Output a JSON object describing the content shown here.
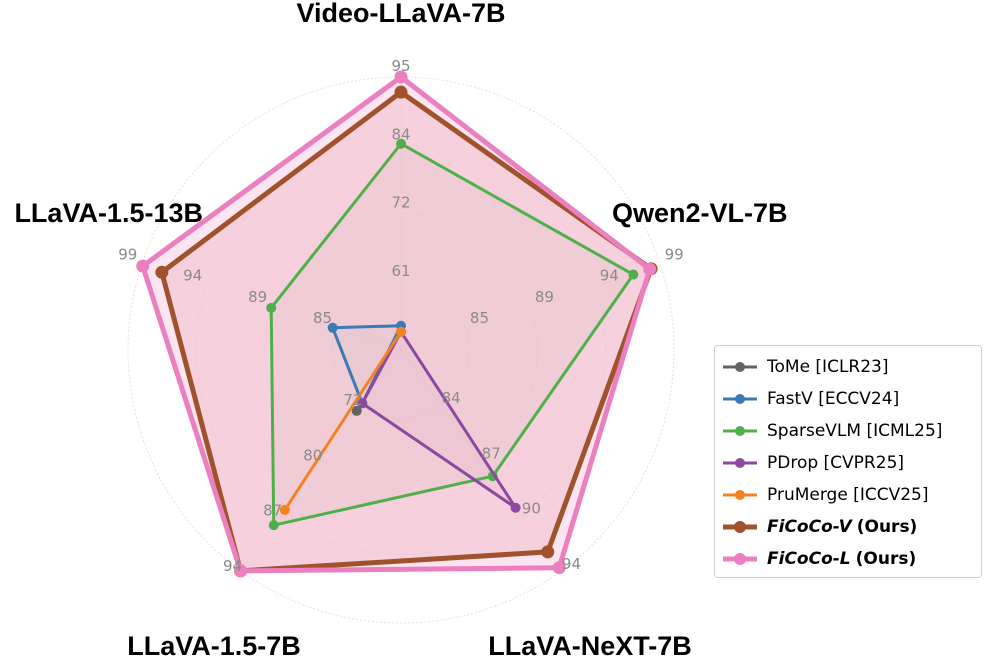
{
  "chart_data": {
    "type": "radar",
    "title": "",
    "grid": true,
    "legend_position": "right",
    "axes": [
      {
        "name": "Video-LLaVA-7B",
        "ticks": [
          "61",
          "72",
          "84",
          "95"
        ],
        "range": [
          50,
          95
        ]
      },
      {
        "name": "Qwen2-VL-7B",
        "ticks": [
          "85",
          "89",
          "94",
          "99"
        ],
        "range": [
          80,
          99
        ]
      },
      {
        "name": "LLaVA-NeXT-7B",
        "ticks": [
          "84",
          "87",
          "90",
          "94"
        ],
        "range": [
          80,
          94
        ]
      },
      {
        "name": "LLaVA-1.5-7B",
        "ticks": [
          "72",
          "80",
          "87",
          "94"
        ],
        "range": [
          65,
          94
        ]
      },
      {
        "name": "LLaVA-1.5-13B",
        "ticks": [
          "85",
          "89",
          "94",
          "99"
        ],
        "range": [
          80,
          99
        ]
      }
    ],
    "series": [
      {
        "name": "ToMe [ICLR23]",
        "color": "#636363",
        "values": [
          null,
          null,
          null,
          73,
          null
        ],
        "bold": false
      },
      {
        "name": "FastV [ECCV24]",
        "color": "#3a7ab5",
        "values": [
          54,
          null,
          null,
          72,
          85
        ],
        "bold": false
      },
      {
        "name": "SparseVLM [ICML25]",
        "color": "#4fb04a",
        "values": [
          84,
          97,
          88,
          88,
          89.5
        ],
        "bold": false
      },
      {
        "name": "PDrop [CVPR25]",
        "color": "#8b49a1",
        "values": [
          53,
          null,
          90,
          72,
          null
        ],
        "bold": false
      },
      {
        "name": "PruMerge [ICCV25]",
        "color": "#f58220",
        "values": [
          53,
          null,
          null,
          86,
          null
        ],
        "bold": false
      },
      {
        "name": "FiCoCo-V",
        "tag": "(Ours)",
        "color": "#a0522d",
        "fill": "#e8b0b0",
        "values": [
          92.5,
          98.3,
          92.8,
          94,
          97.5
        ],
        "bold": true
      },
      {
        "name": "FiCoCo-L",
        "tag": "(Ours)",
        "color": "#ec7fbf",
        "fill": "#f8c4dd",
        "values": [
          95,
          98.2,
          93.8,
          94,
          98.9
        ],
        "bold": true
      }
    ]
  }
}
